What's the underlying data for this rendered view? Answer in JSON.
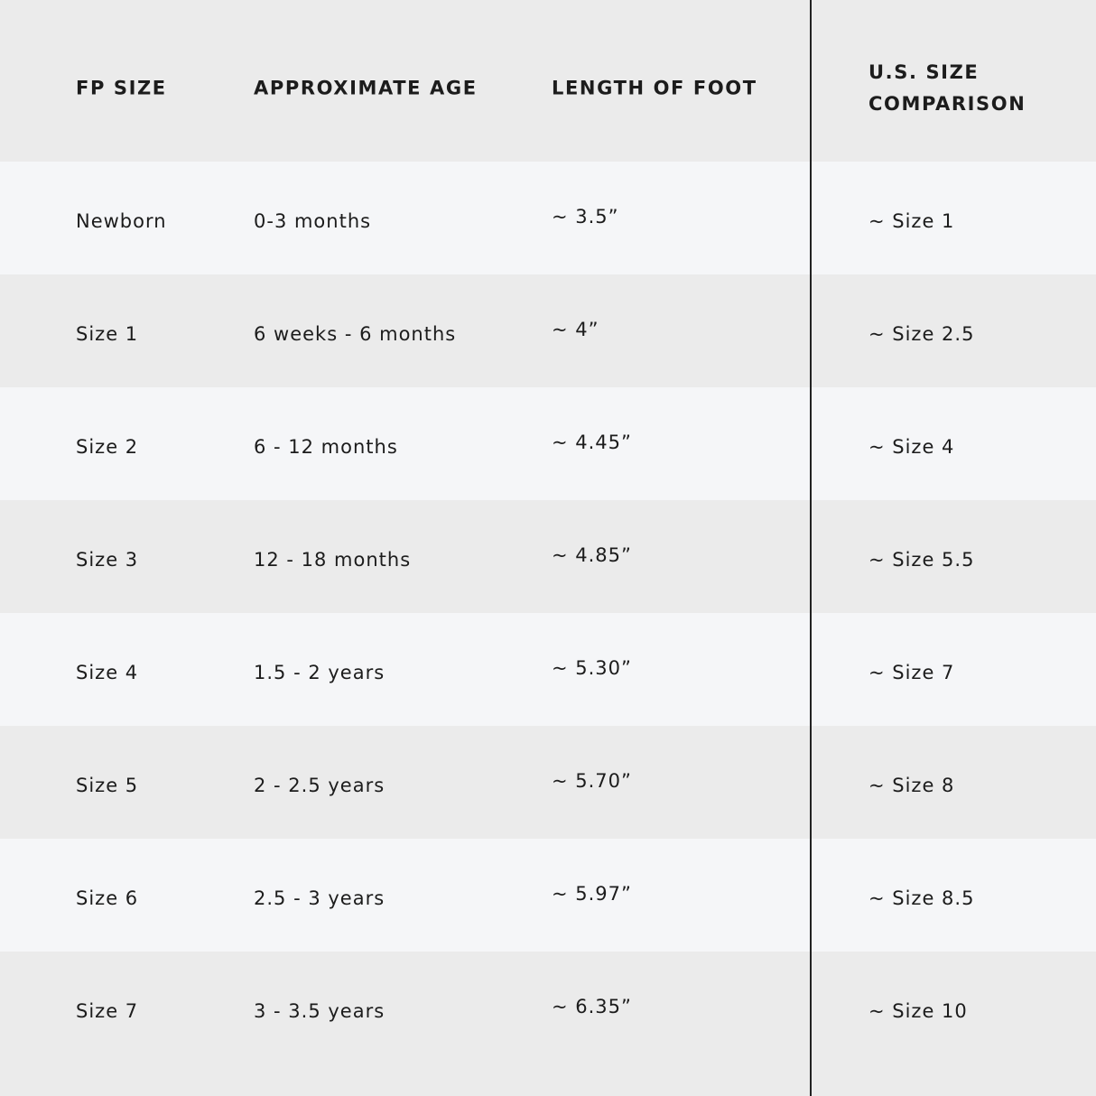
{
  "table": {
    "header": [
      "FP SIZE",
      "APPROXIMATE AGE",
      "LENGTH OF FOOT",
      "U.S. SIZE COMPARISON"
    ],
    "rows": [
      [
        "Newborn",
        "0-3 months",
        "~ 3.5”",
        "~ Size 1"
      ],
      [
        "Size 1",
        "6 weeks - 6 months",
        "~ 4”",
        "~ Size 2.5"
      ],
      [
        "Size 2",
        "6 - 12 months",
        "~ 4.45”",
        "~ Size 4"
      ],
      [
        "Size 3",
        "12 - 18 months",
        "~ 4.85”",
        "~ Size 5.5"
      ],
      [
        "Size 4",
        "1.5 - 2 years",
        "~ 5.30”",
        "~ Size 7"
      ],
      [
        "Size 5",
        "2 - 2.5 years",
        "~ 5.70”",
        "~ Size 8"
      ],
      [
        "Size 6",
        "2.5 - 3 years",
        "~ 5.97”",
        "~ Size 8.5"
      ],
      [
        "Size 7",
        "3 - 3.5 years",
        "~ 6.35”",
        "~ Size 10"
      ]
    ]
  }
}
